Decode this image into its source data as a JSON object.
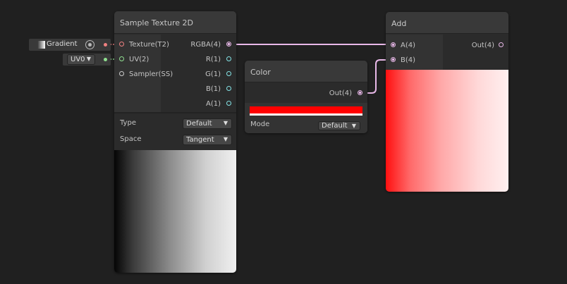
{
  "sample_texture": {
    "title": "Sample Texture 2D",
    "inputs": [
      {
        "label": "Texture(T2)",
        "color": "#f08080"
      },
      {
        "label": "UV(2)",
        "color": "#90e090"
      },
      {
        "label": "Sampler(SS)",
        "color": "#cccccc"
      }
    ],
    "outputs": [
      {
        "label": "RGBA(4)",
        "color": "#e0b8e0"
      },
      {
        "label": "R(1)",
        "color": "#84e4e7"
      },
      {
        "label": "G(1)",
        "color": "#84e4e7"
      },
      {
        "label": "B(1)",
        "color": "#84e4e7"
      },
      {
        "label": "A(1)",
        "color": "#84e4e7"
      }
    ],
    "type_label": "Type",
    "type_value": "Default",
    "space_label": "Space",
    "space_value": "Tangent"
  },
  "gradient_input": {
    "label": "Gradient",
    "icon": "texture-icon",
    "picker_icon": "target-icon"
  },
  "uv_input": {
    "value": "UV0"
  },
  "color_node": {
    "title": "Color",
    "output": "Out(4)",
    "color": "#ff0000",
    "mode_label": "Mode",
    "mode_value": "Default"
  },
  "add_node": {
    "title": "Add",
    "inputs": [
      "A(4)",
      "B(4)"
    ],
    "output": "Out(4)"
  },
  "wire_color": "#e8b8e8"
}
